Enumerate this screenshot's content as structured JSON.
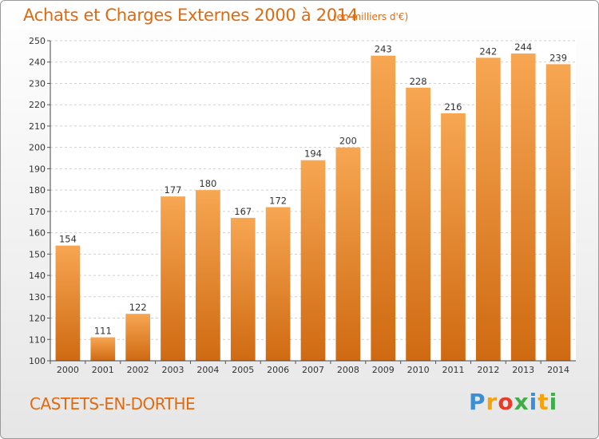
{
  "header": {
    "title": "Achats et Charges Externes 2000 à 2014",
    "subtitle": "(en milliers d'€)"
  },
  "footer": {
    "place": "CASTETS-EN-DORTHE",
    "logo_letters": [
      "P",
      "r",
      "o",
      "x",
      "i",
      "t",
      "i"
    ],
    "logo_colors": [
      "#3b8fd6",
      "#f2a30f",
      "#e83c2b",
      "#3fae49",
      "#3b8fd6",
      "#f2a30f",
      "#3fae49"
    ]
  },
  "colors": {
    "accent": "#e06a10",
    "bar_top": "#f7a652",
    "bar_bottom": "#cf6a12",
    "grid": "#d0d0d0",
    "plot_bg": "#ffffff"
  },
  "chart_data": {
    "type": "bar",
    "title": "Achats et Charges Externes 2000 à 2014",
    "subtitle": "(en milliers d'€)",
    "xlabel": "",
    "ylabel": "",
    "categories": [
      "2000",
      "2001",
      "2002",
      "2003",
      "2004",
      "2005",
      "2006",
      "2007",
      "2008",
      "2009",
      "2010",
      "2011",
      "2012",
      "2013",
      "2014"
    ],
    "values": [
      154,
      111,
      122,
      177,
      180,
      167,
      172,
      194,
      200,
      243,
      228,
      216,
      242,
      244,
      239
    ],
    "ylim": [
      100,
      250
    ],
    "yticks": [
      100,
      110,
      120,
      130,
      140,
      150,
      160,
      170,
      180,
      190,
      200,
      210,
      220,
      230,
      240,
      250
    ],
    "grid": true,
    "legend": "none"
  }
}
